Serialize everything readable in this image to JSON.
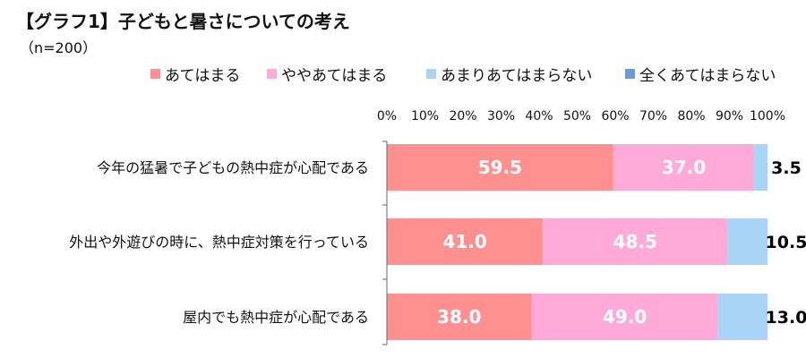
{
  "title": "【グラフ1】子どもと暑さについての考え",
  "subtitle": "（n=200）",
  "colors": {
    "series": [
      "#ff9090",
      "#ffaad8",
      "#a9d4f5",
      "#6a9bd8"
    ],
    "label_light": "#ffffff",
    "label_dark": "#000000"
  },
  "chart_data": {
    "type": "bar",
    "orientation": "horizontal",
    "stacked": true,
    "title": "【グラフ1】子どもと暑さについての考え",
    "subtitle": "（n=200）",
    "xlim": [
      0,
      100
    ],
    "tick_labels": [
      "0%",
      "10%",
      "20%",
      "30%",
      "40%",
      "50%",
      "60%",
      "70%",
      "80%",
      "90%",
      "100%"
    ],
    "categories": [
      "今年の猛暑で子どもの熱中症が心配である",
      "外出や外遊びの時に、熱中症対策を行っている",
      "屋内でも熱中症が心配である"
    ],
    "series": [
      {
        "name": "あてはまる",
        "values": [
          59.5,
          41.0,
          38.0
        ],
        "labels": [
          "59.5",
          "41.0",
          "38.0"
        ]
      },
      {
        "name": "ややあてはまる",
        "values": [
          37.0,
          48.5,
          49.0
        ],
        "labels": [
          "37.0",
          "48.5",
          "49.0"
        ]
      },
      {
        "name": "あまりあてはまらない",
        "values": [
          3.5,
          10.5,
          13.0
        ],
        "labels": [
          "3.5",
          "10.5",
          "13.0"
        ]
      },
      {
        "name": "全くあてはまらない",
        "values": [
          0,
          0,
          0
        ],
        "labels": [
          "",
          "",
          ""
        ]
      }
    ],
    "legend_position": "top",
    "grid": false
  }
}
